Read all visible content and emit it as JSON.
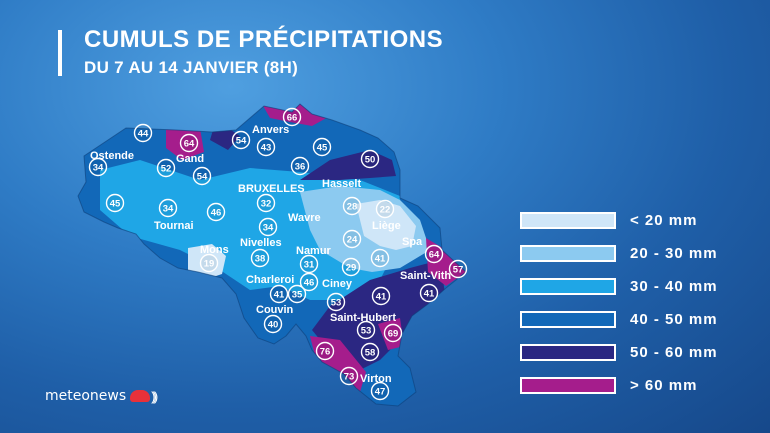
{
  "header": {
    "title": "CUMULS DE PRÉCIPITATIONS",
    "subtitle": "DU 7 AU 14 JANVIER (8H)"
  },
  "colors": {
    "lt20": "#cfe6f8",
    "20_30": "#8ccaf0",
    "30_40": "#1fa6e6",
    "40_50": "#1268b8",
    "50_60": "#2b2782",
    "gt60": "#a51d8c",
    "bubble_border": "#ffffff"
  },
  "legend": [
    {
      "label": "< 20 mm",
      "color": "#cfe6f8"
    },
    {
      "label": "20 - 30 mm",
      "color": "#8ccaf0"
    },
    {
      "label": "30 - 40 mm",
      "color": "#1fa6e6"
    },
    {
      "label": "40 - 50 mm",
      "color": "#1268b8"
    },
    {
      "label": "50 - 60 mm",
      "color": "#2b2782"
    },
    {
      "label": "> 60 mm",
      "color": "#a51d8c"
    }
  ],
  "places": [
    "Anvers",
    "Ostende",
    "Gand",
    "BRUXELLES",
    "Hasselt",
    "Liège",
    "Wavre",
    "Tournai",
    "Mons",
    "Nivelles",
    "Namur",
    "Spa",
    "Saint-Vith",
    "Charleroi",
    "Ciney",
    "Couvin",
    "Saint-Hubert",
    "Virton"
  ],
  "values": [
    "66",
    "44",
    "64",
    "54",
    "43",
    "45",
    "50",
    "34",
    "52",
    "54",
    "36",
    "45",
    "34",
    "46",
    "32",
    "28",
    "22",
    "34",
    "24",
    "19",
    "38",
    "31",
    "29",
    "64",
    "41",
    "57",
    "41",
    "41",
    "35",
    "46",
    "53",
    "41",
    "40",
    "53",
    "69",
    "58",
    "76",
    "73",
    "47"
  ],
  "brand": {
    "name": "meteonews",
    "icon": "cloud-icon"
  }
}
